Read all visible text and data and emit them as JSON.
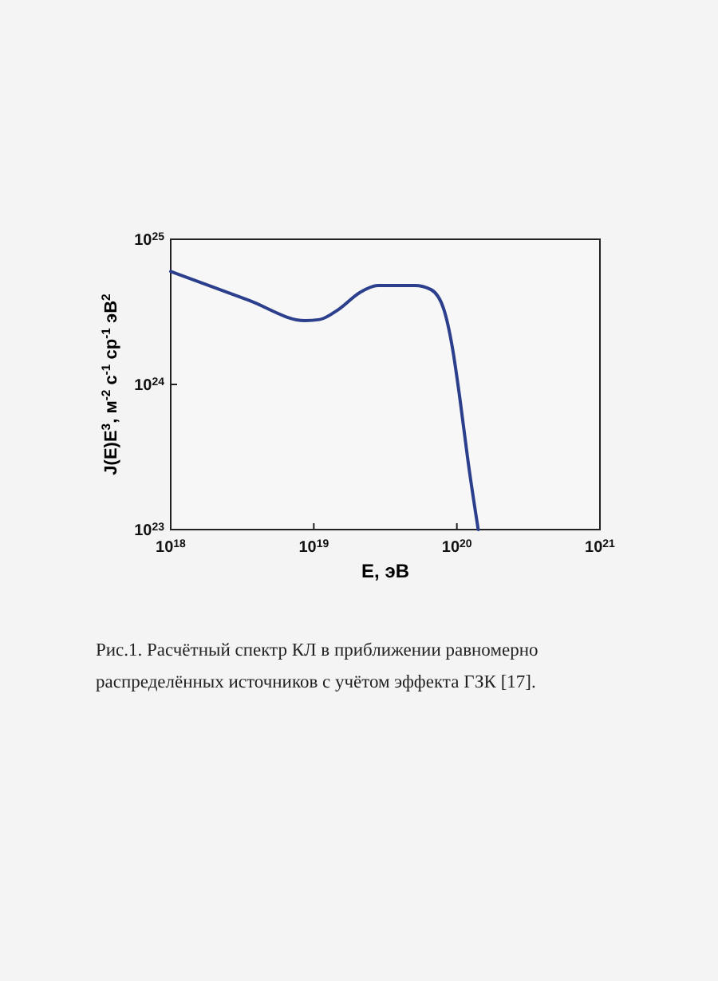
{
  "chart_data": {
    "type": "line",
    "xlabel": "E, эВ",
    "ylabel": "J(E)E$^{3}$, м$^{-2}$ с$^{-1}$ ср$^{-1}$ эВ$^{2}$",
    "log": "xy",
    "grid": false,
    "marker": "none",
    "line_style": "solid",
    "xlim": [
      1e+18,
      1e+21
    ],
    "ylim": [
      1e+23,
      1e+25
    ],
    "xticks": [
      {
        "value": 1e+18,
        "label": "10$^{18}$"
      },
      {
        "value": 1e+19,
        "label": "10$^{19}$"
      },
      {
        "value": 1e+20,
        "label": "10$^{20}$"
      },
      {
        "value": 1e+21,
        "label": "10$^{21}$"
      }
    ],
    "yticks": [
      {
        "value": 1e+23,
        "label": "10$^{23}$"
      },
      {
        "value": 1e+24,
        "label": "10$^{24}$"
      },
      {
        "value": 1e+25,
        "label": "10$^{25}$"
      }
    ],
    "series": [
      {
        "color": "#2b3f8c",
        "x": [
          1e+18,
          3.5e+18,
          8.7e+18,
          1.1e+19,
          1.5e+19,
          2.1e+19,
          2.8e+19,
          5.1e+19,
          6.6e+19,
          8.1e+19,
          9.3e+19,
          1.05e+20,
          1.2e+20,
          1.41e+20
        ],
        "values": [
          6e+24,
          3.8e+24,
          2.75e+24,
          2.8e+24,
          3.3e+24,
          4.3e+24,
          4.8e+24,
          4.8e+24,
          4.5e+24,
          3.3e+24,
          1.8e+24,
          8e+23,
          2.9e+23,
          1e+23
        ]
      }
    ],
    "annotations": [
      "Рис.1. Расчётный спектр КЛ в приближении равномерно распределённых источников с учётом эффекта ГЗК [17]."
    ]
  }
}
